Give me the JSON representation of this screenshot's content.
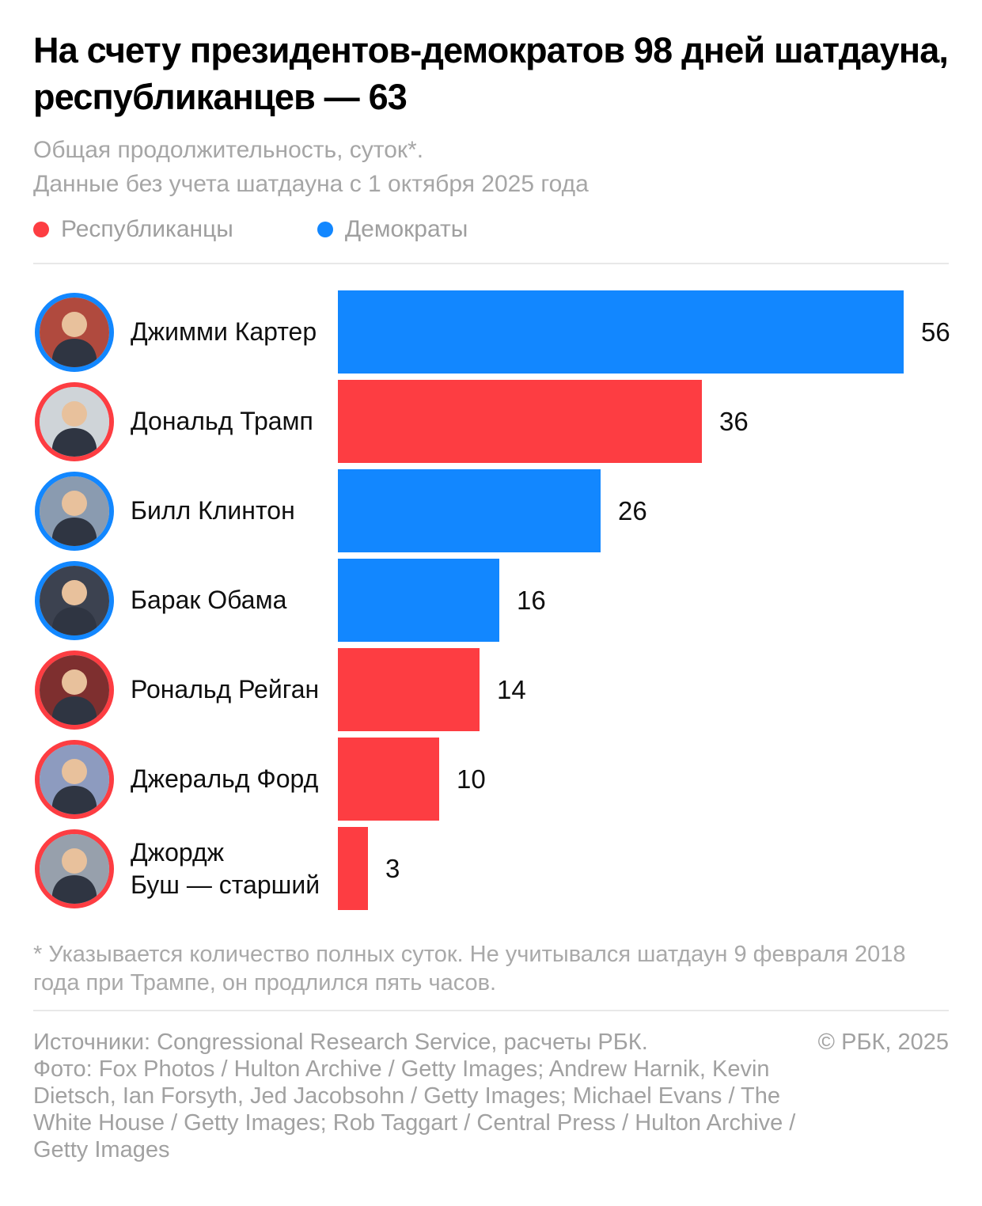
{
  "header": {
    "title": "На счету президентов-демократов 98 дней шатдауна, республиканцев — 63",
    "subtitle_line1": "Общая продолжительность, суток*.",
    "subtitle_line2": "Данные без учета шатдауна с 1 октября 2025 года"
  },
  "legend": {
    "republicans": "Республиканцы",
    "democrats": "Демократы"
  },
  "chart_data": {
    "type": "bar",
    "orientation": "horizontal",
    "unit": "суток",
    "xlim": [
      0,
      56
    ],
    "grid": false,
    "colors": {
      "republican": "#FD3D42",
      "democrat": "#1287FF"
    },
    "rows": [
      {
        "id": "jimmy-carter",
        "label": "Джимми Картер",
        "value": 56,
        "party": "democrat",
        "avatar_bg": "#b04a3e"
      },
      {
        "id": "donald-trump",
        "label": "Дональд Трамп",
        "value": 36,
        "party": "republican",
        "avatar_bg": "#cfd4d8"
      },
      {
        "id": "bill-clinton",
        "label": "Билл Клинтон",
        "value": 26,
        "party": "democrat",
        "avatar_bg": "#8a9bb0"
      },
      {
        "id": "barack-obama",
        "label": "Барак Обама",
        "value": 16,
        "party": "democrat",
        "avatar_bg": "#3c4250"
      },
      {
        "id": "ronald-reagan",
        "label": "Рональд Рейган",
        "value": 14,
        "party": "republican",
        "avatar_bg": "#7e2f2f"
      },
      {
        "id": "gerald-ford",
        "label": "Джеральд Форд",
        "value": 10,
        "party": "republican",
        "avatar_bg": "#8d9bbf"
      },
      {
        "id": "george-bush-sr",
        "label": "Джордж\nБуш — старший",
        "value": 3,
        "party": "republican",
        "avatar_bg": "#97a0ac"
      }
    ]
  },
  "footnote": "* Указывается количество полных суток. Не учитывался шатдаун 9 февраля 2018 года при Трампе, он продлился пять часов.",
  "footer": {
    "sources": "Источники: Congressional Research Service, расчеты РБК.",
    "copyright": "© РБК, 2025",
    "photo_credits": "Фото: Fox Photos / Hulton Archive / Getty Images; Andrew Harnik, Kevin Dietsch, Ian Forsyth, Jed Jacobsohn / Getty Images; Michael Evans / The White House / Getty Images; Rob Taggart / Central Press / Hulton Archive / Getty Images"
  }
}
